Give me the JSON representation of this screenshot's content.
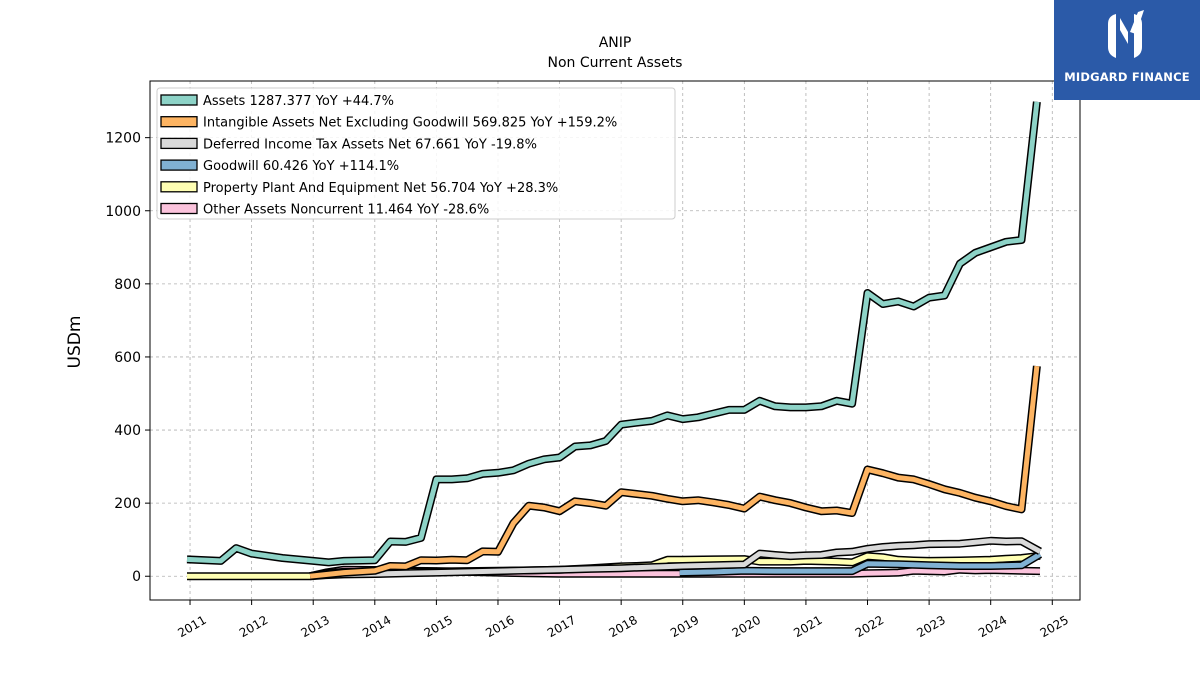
{
  "chart_data": {
    "type": "line",
    "title": "ANIP",
    "subtitle": "Non Current  Assets",
    "xlabel": "",
    "ylabel": "USDm",
    "xlim": [
      2010.35,
      2025.45
    ],
    "ylim": [
      -65,
      1355
    ],
    "x_ticks": [
      "2011",
      "2012",
      "2013",
      "2014",
      "2015",
      "2016",
      "2017",
      "2018",
      "2019",
      "2020",
      "2021",
      "2022",
      "2023",
      "2024",
      "2025"
    ],
    "y_ticks": [
      "0",
      "200",
      "400",
      "600",
      "800",
      "1000",
      "1200"
    ],
    "grid": true,
    "legend_position": "top-left",
    "series": [
      {
        "name": "Other Assets Noncurrent  11.464 YoY -28.6%",
        "color": "#fbc3dc",
        "points": [
          [
            2012.95,
            0
          ],
          [
            2013.2,
            10
          ],
          [
            2013.5,
            18
          ],
          [
            2014.0,
            17
          ],
          [
            2014.5,
            15
          ],
          [
            2015.0,
            14
          ],
          [
            2015.5,
            12
          ],
          [
            2016.0,
            10
          ],
          [
            2016.5,
            8
          ],
          [
            2017.0,
            7
          ],
          [
            2017.5,
            7
          ],
          [
            2018.0,
            7
          ],
          [
            2018.5,
            7
          ],
          [
            2019.0,
            7
          ],
          [
            2019.5,
            7
          ],
          [
            2020.0,
            7
          ],
          [
            2020.5,
            7
          ],
          [
            2021.0,
            7
          ],
          [
            2021.5,
            7
          ],
          [
            2021.75,
            7
          ],
          [
            2022.0,
            8
          ],
          [
            2022.25,
            9
          ],
          [
            2022.5,
            10
          ],
          [
            2022.75,
            15
          ],
          [
            2023.0,
            14
          ],
          [
            2023.25,
            13
          ],
          [
            2023.5,
            18
          ],
          [
            2023.75,
            16
          ],
          [
            2024.0,
            17
          ],
          [
            2024.25,
            16
          ],
          [
            2024.5,
            15
          ],
          [
            2024.8,
            14
          ]
        ]
      },
      {
        "name": "Property Plant And Equipment Net  56.704 YoY +28.3%",
        "color": "#ffffb3",
        "points": [
          [
            2010.95,
            0
          ],
          [
            2011.5,
            0
          ],
          [
            2012.0,
            0
          ],
          [
            2012.5,
            0
          ],
          [
            2012.95,
            0
          ],
          [
            2013.2,
            8
          ],
          [
            2013.5,
            12
          ],
          [
            2014.0,
            12
          ],
          [
            2014.5,
            13
          ],
          [
            2015.0,
            13
          ],
          [
            2015.5,
            14
          ],
          [
            2016.0,
            15
          ],
          [
            2016.5,
            16
          ],
          [
            2017.0,
            18
          ],
          [
            2017.5,
            22
          ],
          [
            2018.0,
            27
          ],
          [
            2018.25,
            28
          ],
          [
            2018.5,
            30
          ],
          [
            2018.75,
            45
          ],
          [
            2019.0,
            45
          ],
          [
            2019.5,
            46
          ],
          [
            2020.0,
            47
          ],
          [
            2020.25,
            40
          ],
          [
            2020.5,
            40
          ],
          [
            2020.75,
            40
          ],
          [
            2021.0,
            42
          ],
          [
            2021.5,
            40
          ],
          [
            2021.75,
            38
          ],
          [
            2022.0,
            55
          ],
          [
            2022.25,
            52
          ],
          [
            2022.5,
            45
          ],
          [
            2022.75,
            43
          ],
          [
            2023.0,
            42
          ],
          [
            2023.5,
            43
          ],
          [
            2024.0,
            45
          ],
          [
            2024.25,
            48
          ],
          [
            2024.5,
            50
          ],
          [
            2024.8,
            56
          ]
        ]
      },
      {
        "name": "Goodwill  60.426 YoY +114.1%",
        "color": "#80b1d3",
        "points": [
          [
            2018.95,
            10
          ],
          [
            2019.5,
            12
          ],
          [
            2020.0,
            15
          ],
          [
            2020.5,
            14
          ],
          [
            2021.0,
            14
          ],
          [
            2021.5,
            14
          ],
          [
            2021.75,
            14
          ],
          [
            2022.0,
            34
          ],
          [
            2022.5,
            33
          ],
          [
            2023.0,
            30
          ],
          [
            2023.5,
            28
          ],
          [
            2024.0,
            28
          ],
          [
            2024.5,
            30
          ],
          [
            2024.8,
            60
          ]
        ]
      },
      {
        "name": "Deferred Income Tax Assets Net  67.661 YoY -19.8%",
        "color": "#d9d9d9",
        "points": [
          [
            2012.95,
            0
          ],
          [
            2013.2,
            3
          ],
          [
            2013.5,
            5
          ],
          [
            2014.0,
            6
          ],
          [
            2014.5,
            8
          ],
          [
            2015.0,
            10
          ],
          [
            2015.5,
            12
          ],
          [
            2016.0,
            14
          ],
          [
            2016.5,
            16
          ],
          [
            2017.0,
            18
          ],
          [
            2017.5,
            20
          ],
          [
            2018.0,
            22
          ],
          [
            2018.5,
            25
          ],
          [
            2019.0,
            28
          ],
          [
            2019.5,
            30
          ],
          [
            2020.0,
            32
          ],
          [
            2020.25,
            62
          ],
          [
            2020.5,
            58
          ],
          [
            2020.75,
            55
          ],
          [
            2021.0,
            57
          ],
          [
            2021.25,
            58
          ],
          [
            2021.5,
            65
          ],
          [
            2021.75,
            67
          ],
          [
            2022.0,
            75
          ],
          [
            2022.25,
            80
          ],
          [
            2022.5,
            83
          ],
          [
            2022.75,
            85
          ],
          [
            2023.0,
            88
          ],
          [
            2023.5,
            89
          ],
          [
            2023.75,
            93
          ],
          [
            2024.0,
            97
          ],
          [
            2024.25,
            95
          ],
          [
            2024.5,
            96
          ],
          [
            2024.8,
            68
          ]
        ]
      },
      {
        "name": "Intangible Assets Net Excluding Goodwill  569.825 YoY +159.2%",
        "color": "#fdb462",
        "points": [
          [
            2012.95,
            0
          ],
          [
            2013.5,
            10
          ],
          [
            2014.0,
            15
          ],
          [
            2014.25,
            28
          ],
          [
            2014.5,
            27
          ],
          [
            2014.75,
            44
          ],
          [
            2015.0,
            43
          ],
          [
            2015.25,
            45
          ],
          [
            2015.5,
            44
          ],
          [
            2015.75,
            68
          ],
          [
            2016.0,
            67
          ],
          [
            2016.25,
            145
          ],
          [
            2016.5,
            193
          ],
          [
            2016.75,
            188
          ],
          [
            2017.0,
            178
          ],
          [
            2017.25,
            205
          ],
          [
            2017.5,
            200
          ],
          [
            2017.75,
            193
          ],
          [
            2018.0,
            230
          ],
          [
            2018.25,
            225
          ],
          [
            2018.5,
            220
          ],
          [
            2018.75,
            212
          ],
          [
            2019.0,
            205
          ],
          [
            2019.25,
            208
          ],
          [
            2019.5,
            202
          ],
          [
            2019.75,
            195
          ],
          [
            2020.0,
            185
          ],
          [
            2020.25,
            218
          ],
          [
            2020.5,
            208
          ],
          [
            2020.75,
            200
          ],
          [
            2021.0,
            188
          ],
          [
            2021.25,
            178
          ],
          [
            2021.5,
            180
          ],
          [
            2021.75,
            173
          ],
          [
            2022.0,
            292
          ],
          [
            2022.25,
            282
          ],
          [
            2022.5,
            270
          ],
          [
            2022.75,
            265
          ],
          [
            2023.0,
            252
          ],
          [
            2023.25,
            238
          ],
          [
            2023.5,
            228
          ],
          [
            2023.75,
            215
          ],
          [
            2024.0,
            205
          ],
          [
            2024.25,
            192
          ],
          [
            2024.5,
            183
          ],
          [
            2024.75,
            575
          ]
        ]
      },
      {
        "name": "Assets  1287.377 YoY +44.7%",
        "color": "#8dd3c7",
        "points": [
          [
            2010.95,
            46
          ],
          [
            2011.5,
            42
          ],
          [
            2011.75,
            77
          ],
          [
            2012.0,
            62
          ],
          [
            2012.5,
            50
          ],
          [
            2013.0,
            42
          ],
          [
            2013.25,
            38
          ],
          [
            2013.5,
            42
          ],
          [
            2014.0,
            44
          ],
          [
            2014.25,
            95
          ],
          [
            2014.5,
            94
          ],
          [
            2014.75,
            105
          ],
          [
            2015.0,
            265
          ],
          [
            2015.25,
            265
          ],
          [
            2015.5,
            268
          ],
          [
            2015.75,
            280
          ],
          [
            2016.0,
            283
          ],
          [
            2016.25,
            290
          ],
          [
            2016.5,
            308
          ],
          [
            2016.75,
            320
          ],
          [
            2017.0,
            325
          ],
          [
            2017.25,
            355
          ],
          [
            2017.5,
            358
          ],
          [
            2017.75,
            370
          ],
          [
            2018.0,
            415
          ],
          [
            2018.25,
            420
          ],
          [
            2018.5,
            425
          ],
          [
            2018.75,
            440
          ],
          [
            2019.0,
            430
          ],
          [
            2019.25,
            435
          ],
          [
            2019.5,
            445
          ],
          [
            2019.75,
            455
          ],
          [
            2020.0,
            455
          ],
          [
            2020.25,
            480
          ],
          [
            2020.5,
            465
          ],
          [
            2020.75,
            462
          ],
          [
            2021.0,
            462
          ],
          [
            2021.25,
            465
          ],
          [
            2021.5,
            480
          ],
          [
            2021.75,
            472
          ],
          [
            2022.0,
            775
          ],
          [
            2022.25,
            745
          ],
          [
            2022.5,
            752
          ],
          [
            2022.75,
            738
          ],
          [
            2023.0,
            762
          ],
          [
            2023.25,
            768
          ],
          [
            2023.5,
            855
          ],
          [
            2023.75,
            885
          ],
          [
            2024.0,
            900
          ],
          [
            2024.25,
            915
          ],
          [
            2024.5,
            920
          ],
          [
            2024.75,
            1298
          ]
        ]
      }
    ],
    "legend_order": [
      5,
      4,
      3,
      2,
      1,
      0
    ]
  },
  "logo": {
    "text": "MIDGARD FINANCE",
    "icon": "midgard-m-logo-icon",
    "color": "#2b5aa8"
  }
}
